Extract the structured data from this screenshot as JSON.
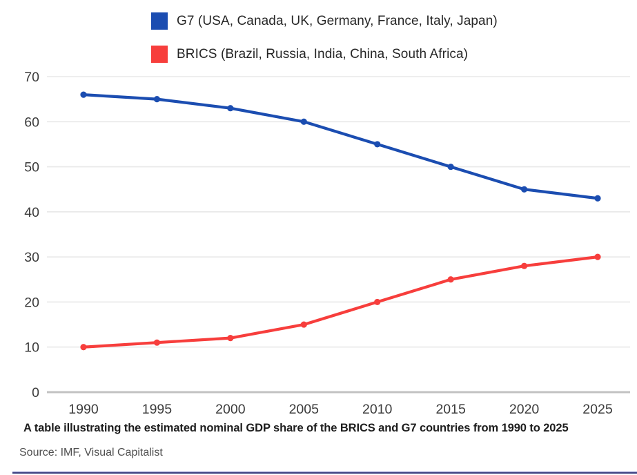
{
  "legend": {
    "items": [
      {
        "label": "G7 (USA, Canada, UK, Germany, France, Italy, Japan)",
        "color": "#1B4DB1"
      },
      {
        "label": "BRICS (Brazil, Russia, India, China, South Africa)",
        "color": "#F73E3C"
      }
    ]
  },
  "chart_data": {
    "type": "line",
    "x": [
      1990,
      1995,
      2000,
      2005,
      2010,
      2015,
      2020,
      2025
    ],
    "series": [
      {
        "name": "G7",
        "color": "#1B4DB1",
        "values": [
          66,
          65,
          63,
          60,
          55,
          50,
          45,
          43
        ]
      },
      {
        "name": "BRICS",
        "color": "#F73E3C",
        "values": [
          10,
          11,
          12,
          15,
          20,
          25,
          28,
          30
        ]
      }
    ],
    "title": "",
    "xlabel": "",
    "ylabel": "",
    "ylim": [
      0,
      70
    ],
    "yticks": [
      0,
      10,
      20,
      30,
      40,
      50,
      60,
      70
    ],
    "grid": true,
    "legend_position": "top"
  },
  "caption": "A table illustrating the estimated nominal GDP share of the BRICS and G7 countries from 1990 to 2025",
  "source": "Source: IMF, Visual Capitalist",
  "colors": {
    "grid": "#e8e8e8",
    "axis_baseline": "#c2c2c2",
    "tick_label": "#3b3b3b",
    "bottom_rule_dark": "#383c7e",
    "bottom_rule_light": "#c9cbe8"
  }
}
